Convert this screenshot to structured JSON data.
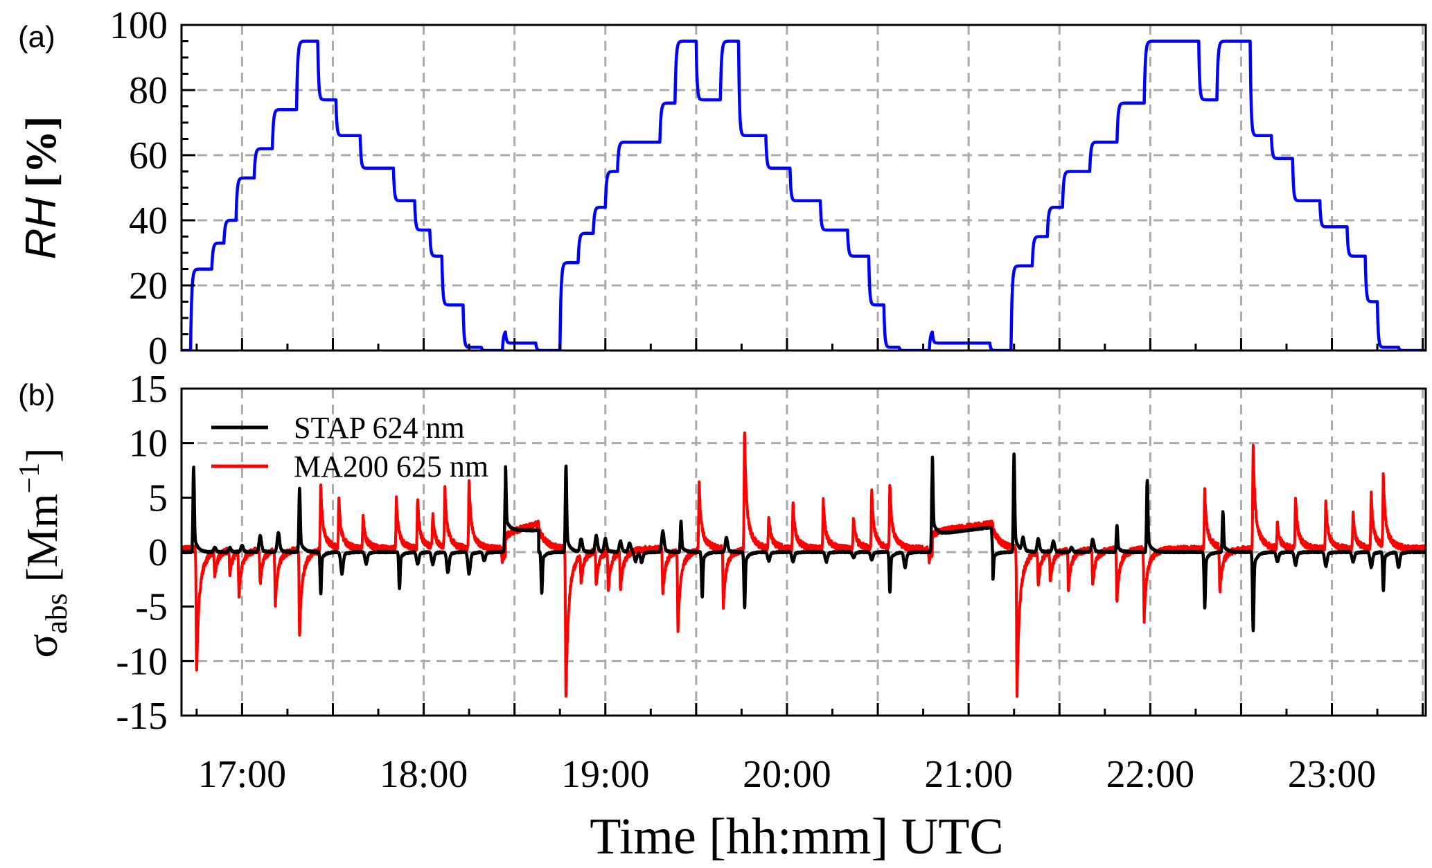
{
  "chart_data": [
    {
      "type": "line",
      "panel_label": "(a)",
      "ylabel": {
        "var": "RH",
        "unit": "[%]"
      },
      "ylim": [
        0,
        100
      ],
      "yticks": [
        "0",
        "20",
        "40",
        "60",
        "80",
        "100"
      ],
      "xlim": [
        "16:40",
        "23:31"
      ],
      "grid": true,
      "series": [
        {
          "color": "#0000ff",
          "steps": [
            [
              "16:40",
              0
            ],
            [
              "16:43",
              25
            ],
            [
              "16:50",
              33
            ],
            [
              "16:54",
              40
            ],
            [
              "16:58",
              53
            ],
            [
              "17:04",
              62
            ],
            [
              "17:10",
              74
            ],
            [
              "17:18",
              95
            ],
            [
              "17:25",
              77
            ],
            [
              "17:31",
              66
            ],
            [
              "17:39",
              56
            ],
            [
              "17:50",
              46
            ],
            [
              "17:57",
              37
            ],
            [
              "18:02",
              29
            ],
            [
              "18:06",
              14
            ],
            [
              "18:13",
              1
            ],
            [
              "18:19",
              0
            ],
            [
              "18:26",
              6
            ],
            [
              "18:27",
              2.3
            ],
            [
              "18:37",
              0
            ],
            [
              "18:45",
              27
            ],
            [
              "18:51",
              36
            ],
            [
              "18:56",
              44
            ],
            [
              "19:00",
              55
            ],
            [
              "19:04",
              64
            ],
            [
              "19:18",
              76
            ],
            [
              "19:23",
              95
            ],
            [
              "19:30",
              77
            ],
            [
              "19:38",
              95
            ],
            [
              "19:44",
              66
            ],
            [
              "19:53",
              56
            ],
            [
              "20:01",
              46
            ],
            [
              "20:11",
              37
            ],
            [
              "20:20",
              29
            ],
            [
              "20:27",
              14
            ],
            [
              "20:32",
              1
            ],
            [
              "20:37",
              0
            ],
            [
              "20:47",
              6
            ],
            [
              "20:48",
              2.3
            ],
            [
              "21:07",
              0
            ],
            [
              "21:14",
              26
            ],
            [
              "21:21",
              35
            ],
            [
              "21:26",
              44
            ],
            [
              "21:31",
              55
            ],
            [
              "21:40",
              64
            ],
            [
              "21:49",
              76
            ],
            [
              "21:58",
              95
            ],
            [
              "22:16",
              77
            ],
            [
              "22:22",
              95
            ],
            [
              "22:33",
              66
            ],
            [
              "22:40",
              59
            ],
            [
              "22:47",
              46
            ],
            [
              "22:56",
              38
            ],
            [
              "23:05",
              29
            ],
            [
              "23:11",
              15
            ],
            [
              "23:15",
              1
            ],
            [
              "23:22",
              0
            ]
          ]
        }
      ]
    },
    {
      "type": "line",
      "panel_label": "(b)",
      "ylabel": {
        "symbol": "σ",
        "sub": "abs",
        "unit_open": "[Mm",
        "sup": "−1",
        "unit_close": "]"
      },
      "ylim": [
        -15,
        15
      ],
      "yticks": [
        "-15",
        "-10",
        "-5",
        "0",
        "5",
        "10",
        "15"
      ],
      "xlim": [
        "16:40",
        "23:31"
      ],
      "xticks": [
        "17:00",
        "18:00",
        "19:00",
        "20:00",
        "21:00",
        "22:00",
        "23:00"
      ],
      "xlabel": "Time [hh:mm] UTC",
      "grid": true,
      "legend_position": "top-left",
      "series": [
        {
          "name": "STAP 624 nm",
          "color": "#000000",
          "baseline": 0,
          "spikes": [
            [
              "16:44",
              7.8
            ],
            [
              "16:51",
              0.4
            ],
            [
              "16:56",
              0.4
            ],
            [
              "17:00",
              0.6
            ],
            [
              "17:06",
              1.5
            ],
            [
              "17:12",
              1.8
            ],
            [
              "17:19",
              5.8
            ],
            [
              "17:26",
              -3.8
            ],
            [
              "17:33",
              -2.0
            ],
            [
              "17:41",
              -1.1
            ],
            [
              "17:52",
              -3.4
            ],
            [
              "17:58",
              -1.1
            ],
            [
              "18:03",
              -1.1
            ],
            [
              "18:08",
              -1.9
            ],
            [
              "18:15",
              -2.0
            ],
            [
              "18:20",
              -0.8
            ],
            [
              "18:27",
              6.0
            ],
            [
              "18:39",
              -3.8
            ],
            [
              "18:47",
              7.9
            ],
            [
              "18:52",
              1.2
            ],
            [
              "18:57",
              1.5
            ],
            [
              "19:00",
              1.2
            ],
            [
              "19:05",
              1.0
            ],
            [
              "19:08",
              0.8
            ],
            [
              "19:10",
              -0.9
            ],
            [
              "19:12",
              -0.9
            ],
            [
              "19:19",
              1.9
            ],
            [
              "19:25",
              2.8
            ],
            [
              "19:32",
              -4.1
            ],
            [
              "19:40",
              1.3
            ],
            [
              "19:46",
              -5.1
            ],
            [
              "19:54",
              -0.8
            ],
            [
              "20:02",
              -0.9
            ],
            [
              "20:13",
              -0.9
            ],
            [
              "20:22",
              -0.5
            ],
            [
              "20:28",
              -0.7
            ],
            [
              "20:34",
              -3.7
            ],
            [
              "20:39",
              -1.4
            ],
            [
              "20:48",
              7.3
            ],
            [
              "21:08",
              -2.5
            ],
            [
              "21:15",
              9.1
            ],
            [
              "21:18",
              1.2
            ],
            [
              "21:23",
              1.2
            ],
            [
              "21:28",
              1.0
            ],
            [
              "21:34",
              0.4
            ],
            [
              "21:41",
              1.2
            ],
            [
              "21:49",
              2.5
            ],
            [
              "21:59",
              6.6
            ],
            [
              "22:18",
              -5.1
            ],
            [
              "22:24",
              3.7
            ],
            [
              "22:34",
              -7.2
            ],
            [
              "22:42",
              -0.9
            ],
            [
              "22:48",
              -1.2
            ],
            [
              "22:58",
              -1.3
            ],
            [
              "23:07",
              -0.9
            ],
            [
              "23:13",
              -1.4
            ],
            [
              "23:17",
              -3.5
            ],
            [
              "23:22",
              -1.4
            ]
          ],
          "plateaus": [
            [
              "18:27",
              "18:38",
              2.0,
              2.0
            ],
            [
              "20:48",
              "21:08",
              1.6,
              2.3
            ]
          ]
        },
        {
          "name": "MA200 625 nm",
          "color": "#ff0000",
          "baseline": 0.3,
          "spikes": [
            [
              "16:45",
              -11.4
            ],
            [
              "16:51",
              -2.3
            ],
            [
              "16:56",
              -2.4
            ],
            [
              "16:59",
              -4.0
            ],
            [
              "17:06",
              -3.2
            ],
            [
              "17:11",
              -5.0
            ],
            [
              "17:19",
              -8.0
            ],
            [
              "17:26",
              6.3
            ],
            [
              "17:32",
              4.5
            ],
            [
              "17:40",
              3.0
            ],
            [
              "17:51",
              4.6
            ],
            [
              "17:58",
              4.6
            ],
            [
              "18:03",
              3.0
            ],
            [
              "18:07",
              5.6
            ],
            [
              "18:15",
              6.3
            ],
            [
              "18:26",
              -1.3
            ],
            [
              "18:47",
              -14.0
            ],
            [
              "18:52",
              -2.6
            ],
            [
              "18:57",
              -3.2
            ],
            [
              "19:01",
              -3.7
            ],
            [
              "19:05",
              -3.7
            ],
            [
              "19:19",
              -4.3
            ],
            [
              "19:24",
              -7.3
            ],
            [
              "19:31",
              6.3
            ],
            [
              "19:39",
              -5.4
            ],
            [
              "19:46",
              10.9
            ],
            [
              "19:54",
              3.1
            ],
            [
              "20:02",
              4.3
            ],
            [
              "20:12",
              4.5
            ],
            [
              "20:22",
              3.0
            ],
            [
              "20:28",
              5.3
            ],
            [
              "20:34",
              5.9
            ],
            [
              "20:47",
              -1.1
            ],
            [
              "21:16",
              -13.5
            ],
            [
              "21:23",
              -3.2
            ],
            [
              "21:27",
              -2.8
            ],
            [
              "21:33",
              -3.8
            ],
            [
              "21:41",
              -3.4
            ],
            [
              "21:49",
              -4.9
            ],
            [
              "21:58",
              -6.5
            ],
            [
              "22:18",
              5.4
            ],
            [
              "22:23",
              -4.3
            ],
            [
              "22:34",
              9.6
            ],
            [
              "22:42",
              2.4
            ],
            [
              "22:48",
              4.8
            ],
            [
              "22:58",
              4.5
            ],
            [
              "23:07",
              3.2
            ],
            [
              "23:13",
              5.1
            ],
            [
              "23:17",
              6.6
            ]
          ],
          "plateaus": [
            [
              "18:27",
              "18:38",
              1.5,
              2.3
            ],
            [
              "20:48",
              "21:08",
              1.6,
              2.3
            ]
          ]
        }
      ]
    }
  ]
}
